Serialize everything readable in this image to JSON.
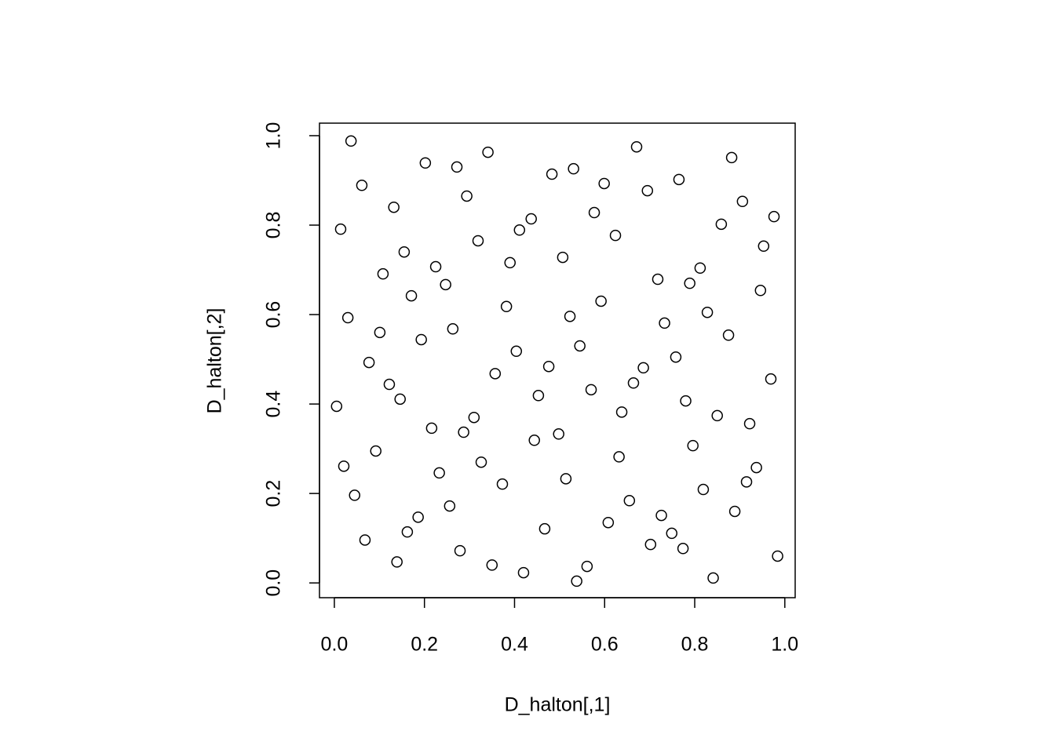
{
  "chart_data": {
    "type": "scatter",
    "xlabel": "D_halton[,1]",
    "ylabel": "D_halton[,2]",
    "color": "#000000",
    "xlim": [
      -0.033,
      1.023
    ],
    "ylim": [
      -0.033,
      1.028
    ],
    "xticks": [
      {
        "value": 0,
        "label": "0.0"
      },
      0.2,
      0.4,
      0.6,
      0.8,
      {
        "value": 1,
        "label": "1.0"
      }
    ],
    "yticks": [
      {
        "value": 0,
        "label": "0.0"
      },
      0.2,
      0.4,
      0.6,
      0.8,
      {
        "value": 1,
        "label": "1.0"
      }
    ],
    "x": [
      0.037,
      0.061,
      0.014,
      0.132,
      0.202,
      0.272,
      0.341,
      0.294,
      0.155,
      0.108,
      0.225,
      0.247,
      0.171,
      0.03,
      0.101,
      0.193,
      0.263,
      0.077,
      0.122,
      0.146,
      0.005,
      0.216,
      0.287,
      0.31,
      0.092,
      0.021,
      0.233,
      0.326,
      0.045,
      0.256,
      0.186,
      0.162,
      0.068,
      0.279,
      0.139,
      0.35,
      0.42,
      0.538,
      0.561,
      0.467,
      0.373,
      0.514,
      0.444,
      0.498,
      0.453,
      0.357,
      0.476,
      0.404,
      0.382,
      0.523,
      0.545,
      0.57,
      0.638,
      0.632,
      0.664,
      0.686,
      0.733,
      0.758,
      0.78,
      0.796,
      0.718,
      0.789,
      0.812,
      0.828,
      0.875,
      0.946,
      0.969,
      0.85,
      0.922,
      0.937,
      0.819,
      0.915,
      0.889,
      0.841,
      0.984,
      0.774,
      0.749,
      0.726,
      0.702,
      0.655,
      0.608,
      0.483,
      0.531,
      0.599,
      0.577,
      0.624,
      0.507,
      0.411,
      0.437,
      0.319,
      0.39,
      0.695,
      0.671,
      0.765,
      0.882,
      0.859,
      0.906,
      0.953,
      0.976,
      0.592
    ],
    "values": [
      0.988,
      0.889,
      0.791,
      0.84,
      0.939,
      0.93,
      0.963,
      0.865,
      0.74,
      0.691,
      0.707,
      0.667,
      0.642,
      0.593,
      0.56,
      0.544,
      0.568,
      0.493,
      0.444,
      0.411,
      0.395,
      0.346,
      0.337,
      0.37,
      0.295,
      0.261,
      0.246,
      0.27,
      0.196,
      0.172,
      0.147,
      0.114,
      0.096,
      0.072,
      0.047,
      0.04,
      0.023,
      0.004,
      0.037,
      0.121,
      0.221,
      0.233,
      0.319,
      0.333,
      0.419,
      0.468,
      0.484,
      0.518,
      0.618,
      0.596,
      0.53,
      0.432,
      0.382,
      0.282,
      0.447,
      0.481,
      0.581,
      0.505,
      0.407,
      0.307,
      0.679,
      0.67,
      0.704,
      0.605,
      0.554,
      0.654,
      0.456,
      0.374,
      0.356,
      0.258,
      0.209,
      0.226,
      0.16,
      0.011,
      0.06,
      0.077,
      0.111,
      0.151,
      0.086,
      0.184,
      0.135,
      0.914,
      0.926,
      0.893,
      0.828,
      0.777,
      0.728,
      0.789,
      0.814,
      0.765,
      0.716,
      0.877,
      0.975,
      0.902,
      0.951,
      0.802,
      0.853,
      0.753,
      0.819,
      0.63
    ]
  }
}
